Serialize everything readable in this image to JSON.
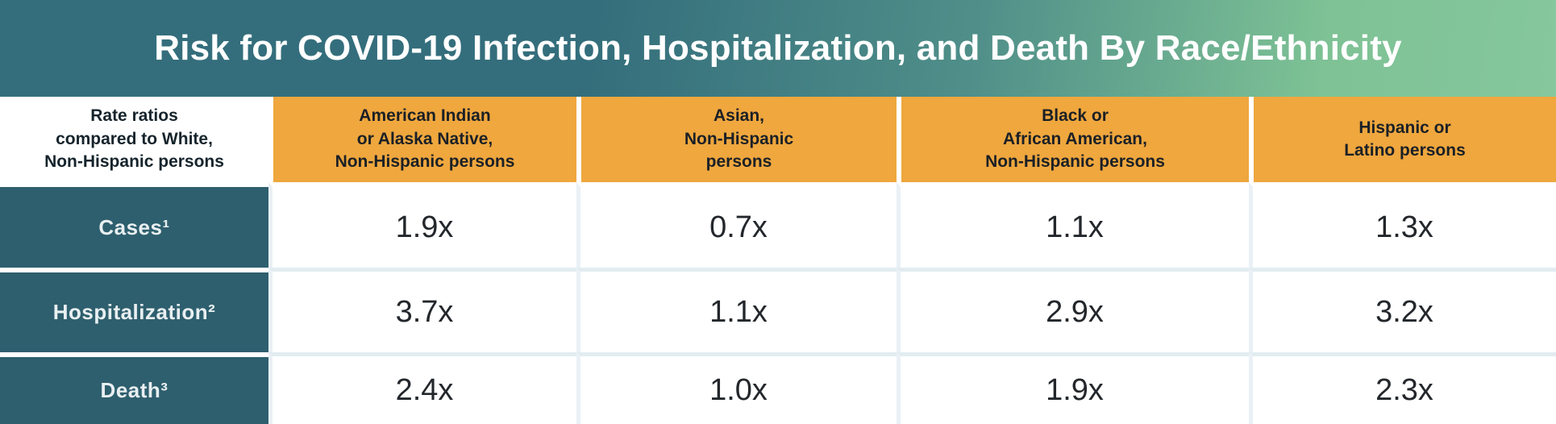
{
  "title": "Risk for COVID-19 Infection, Hospitalization, and Death By Race/Ethnicity",
  "colors": {
    "title_gradient_left": "#346e7c",
    "title_gradient_right": "#86c79d",
    "column_header_orange": "#efa73e",
    "row_label_teal": "#2e5f6e",
    "row_separator": "#e2ecf2",
    "title_text": "#ffffff",
    "header_text": "#1b2026",
    "value_text": "#23272b"
  },
  "table": {
    "corner_header": "Rate ratios\ncompared to White,\nNon-Hispanic persons",
    "column_headers": [
      "American Indian\nor Alaska Native,\nNon-Hispanic persons",
      "Asian,\nNon-Hispanic\npersons",
      "Black or\nAfrican American,\nNon-Hispanic persons",
      "Hispanic or\nLatino persons"
    ],
    "rows": [
      {
        "label": "Cases¹",
        "values": [
          "1.9x",
          "0.7x",
          "1.1x",
          "1.3x"
        ]
      },
      {
        "label": "Hospitalization²",
        "values": [
          "3.7x",
          "1.1x",
          "2.9x",
          "3.2x"
        ]
      },
      {
        "label": "Death³",
        "values": [
          "2.4x",
          "1.0x",
          "1.9x",
          "2.3x"
        ]
      }
    ]
  },
  "chart_data": {
    "type": "table",
    "title": "Risk for COVID-19 Infection, Hospitalization, and Death By Race/Ethnicity",
    "row_header": "Rate ratios compared to White, Non-Hispanic persons",
    "columns": [
      "American Indian or Alaska Native, Non-Hispanic persons",
      "Asian, Non-Hispanic persons",
      "Black or African American, Non-Hispanic persons",
      "Hispanic or Latino persons"
    ],
    "rows": [
      "Cases¹",
      "Hospitalization²",
      "Death³"
    ],
    "values": [
      [
        "1.9x",
        "0.7x",
        "1.1x",
        "1.3x"
      ],
      [
        "3.7x",
        "1.1x",
        "2.9x",
        "3.2x"
      ],
      [
        "2.4x",
        "1.0x",
        "1.9x",
        "2.3x"
      ]
    ]
  }
}
